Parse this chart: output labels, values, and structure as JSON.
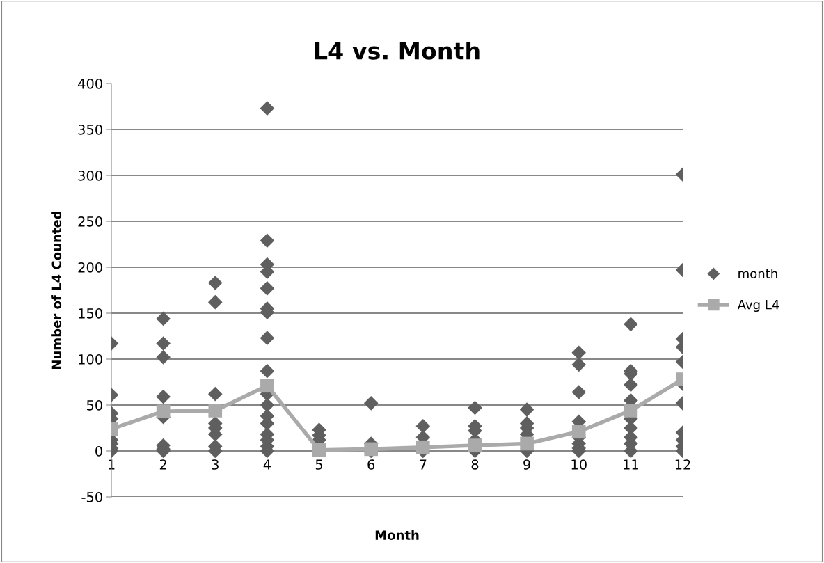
{
  "chart_data": {
    "type": "scatter",
    "title": "L4 vs. Month",
    "xlabel": "Month",
    "ylabel": "Number of L4 Counted",
    "xlim": [
      1,
      12
    ],
    "xticks": [
      1,
      2,
      3,
      4,
      5,
      6,
      7,
      8,
      9,
      10,
      11,
      12
    ],
    "ylim": [
      -50,
      400
    ],
    "yticks": [
      -50,
      0,
      50,
      100,
      150,
      200,
      250,
      300,
      350,
      400
    ],
    "grid": "y",
    "legend": "right",
    "series": [
      {
        "name": "month",
        "color": "#5f5f5f",
        "marker": "diamond",
        "x": [
          1,
          1,
          1,
          1,
          1,
          1,
          1,
          1,
          2,
          2,
          2,
          2,
          2,
          2,
          2,
          2,
          3,
          3,
          3,
          3,
          3,
          3,
          3,
          3,
          4,
          4,
          4,
          4,
          4,
          4,
          4,
          4,
          4,
          4,
          4,
          4,
          4,
          4,
          4,
          4,
          4,
          5,
          5,
          5,
          6,
          6,
          6,
          7,
          7,
          7,
          8,
          8,
          8,
          8,
          8,
          9,
          9,
          9,
          9,
          9,
          10,
          10,
          10,
          10,
          10,
          10,
          10,
          10,
          11,
          11,
          11,
          11,
          11,
          11,
          11,
          11,
          11,
          11,
          12,
          12,
          12,
          12,
          12,
          12,
          12,
          12,
          12,
          12,
          12
        ],
        "values": [
          117,
          61,
          41,
          35,
          12,
          8,
          3,
          0,
          144,
          117,
          102,
          59,
          37,
          6,
          2,
          0,
          183,
          162,
          62,
          30,
          25,
          18,
          5,
          0,
          373,
          229,
          203,
          195,
          177,
          155,
          151,
          123,
          87,
          62,
          50,
          38,
          30,
          18,
          12,
          5,
          0,
          23,
          17,
          12,
          52,
          8,
          0,
          27,
          15,
          0,
          47,
          27,
          22,
          12,
          0,
          45,
          30,
          25,
          18,
          0,
          107,
          94,
          64,
          32,
          15,
          8,
          3,
          0,
          138,
          87,
          84,
          72,
          55,
          35,
          25,
          15,
          8,
          0,
          301,
          197,
          122,
          113,
          97,
          73,
          52,
          20,
          12,
          5,
          0
        ]
      },
      {
        "name": "Avg L4",
        "type": "line",
        "color": "#aaaaaa",
        "marker": "square",
        "line_style": "solid",
        "x": [
          1,
          2,
          3,
          4,
          5,
          6,
          7,
          8,
          9,
          10,
          11,
          12
        ],
        "values": [
          24,
          43,
          44,
          71,
          1,
          2,
          4,
          6,
          8,
          21,
          44,
          78
        ]
      }
    ]
  }
}
